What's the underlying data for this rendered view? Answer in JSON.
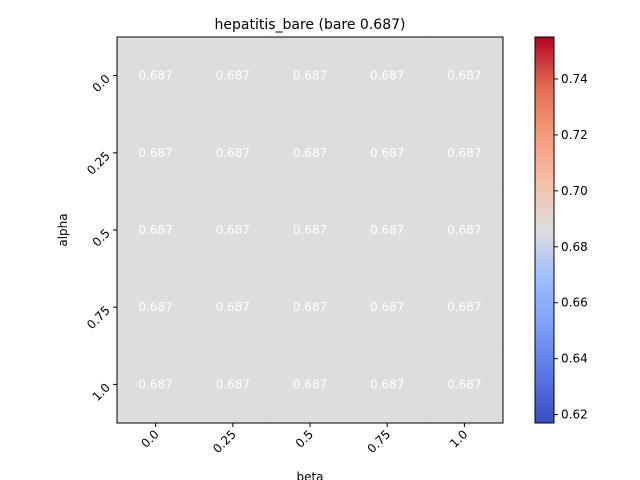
{
  "chart_data": {
    "type": "heatmap",
    "title": "hepatitis_bare (bare 0.687)",
    "xlabel": "beta",
    "ylabel": "alpha",
    "x_categories": [
      "0.0",
      "0.25",
      "0.5",
      "0.75",
      "1.0"
    ],
    "y_categories": [
      "0.0",
      "0.25",
      "0.5",
      "0.75",
      "1.0"
    ],
    "values": [
      [
        0.687,
        0.687,
        0.687,
        0.687,
        0.687
      ],
      [
        0.687,
        0.687,
        0.687,
        0.687,
        0.687
      ],
      [
        0.687,
        0.687,
        0.687,
        0.687,
        0.687
      ],
      [
        0.687,
        0.687,
        0.687,
        0.687,
        0.687
      ],
      [
        0.687,
        0.687,
        0.687,
        0.687,
        0.687
      ]
    ],
    "value_labels": [
      [
        "0.687",
        "0.687",
        "0.687",
        "0.687",
        "0.687"
      ],
      [
        "0.687",
        "0.687",
        "0.687",
        "0.687",
        "0.687"
      ],
      [
        "0.687",
        "0.687",
        "0.687",
        "0.687",
        "0.687"
      ],
      [
        "0.687",
        "0.687",
        "0.687",
        "0.687",
        "0.687"
      ],
      [
        "0.687",
        "0.687",
        "0.687",
        "0.687",
        "0.687"
      ]
    ],
    "colormap": "coolwarm",
    "colorbar": {
      "range": [
        0.617,
        0.755
      ],
      "ticks": [
        0.62,
        0.64,
        0.66,
        0.68,
        0.7,
        0.72,
        0.74
      ],
      "tick_labels": [
        "0.62",
        "0.64",
        "0.66",
        "0.68",
        "0.70",
        "0.72",
        "0.74"
      ]
    },
    "cell_color": "#dcdddd",
    "grid": false
  }
}
